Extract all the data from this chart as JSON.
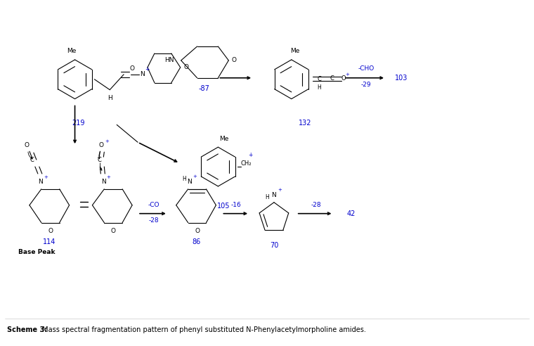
{
  "title_bold": "Scheme 3:",
  "title_rest": " Mass spectral fragmentation pattern of phenyl substituted N-Phenylacetylmorpholine amides.",
  "bg_color": "#ffffff",
  "text_color": "#000000",
  "blue_color": "#0000cd",
  "label_219": "219",
  "label_132": "132",
  "label_103": "103",
  "label_105": "105",
  "label_87": "-87",
  "label_cho": "-CHO",
  "label_29": "-29",
  "label_114": "114",
  "label_86": "86",
  "label_70": "70",
  "label_42": "42",
  "label_co": "-CO",
  "label_28a": "-28",
  "label_16": "-16",
  "label_28b": "-28",
  "base_peak": "Base Peak"
}
